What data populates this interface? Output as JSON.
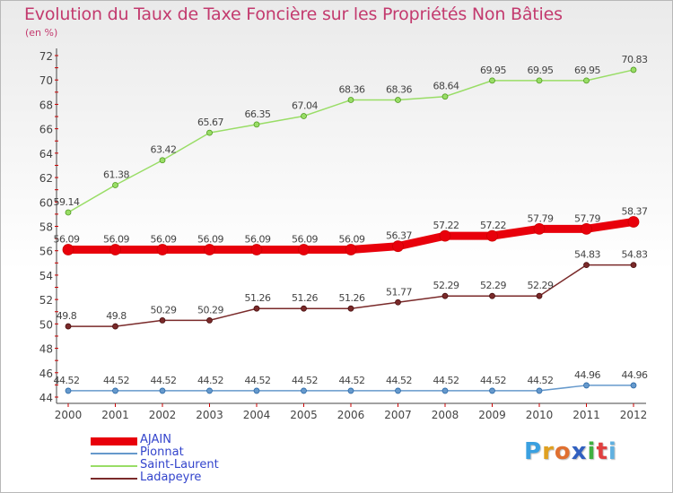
{
  "header": {
    "title": "Evolution du Taux de Taxe Foncière sur les Propriétés Non Bâties",
    "unit_note": "(en %)"
  },
  "chart_data": {
    "type": "line",
    "title": "Evolution du Taux de Taxe Foncière sur les Propriétés Non Bâties",
    "ylabel": "(en %)",
    "xlabel": "",
    "x": [
      "2000",
      "2001",
      "2002",
      "2003",
      "2004",
      "2005",
      "2006",
      "2007",
      "2008",
      "2009",
      "2010",
      "2011",
      "2012"
    ],
    "ylim": [
      44,
      72
    ],
    "yticks": [
      44,
      46,
      48,
      50,
      52,
      54,
      56,
      58,
      60,
      62,
      64,
      66,
      68,
      70,
      72
    ],
    "grid": false,
    "legend_position": "bottom-left",
    "series": [
      {
        "name": "AJAIN",
        "color": "#e8000b",
        "values": [
          56.09,
          56.09,
          56.09,
          56.09,
          56.09,
          56.09,
          56.09,
          56.37,
          57.22,
          57.22,
          57.79,
          57.79,
          58.37
        ]
      },
      {
        "name": "Pionnat",
        "color": "#6699cc",
        "values": [
          44.52,
          44.52,
          44.52,
          44.52,
          44.52,
          44.52,
          44.52,
          44.52,
          44.52,
          44.52,
          44.52,
          44.96,
          44.96
        ]
      },
      {
        "name": "Saint-Laurent",
        "color": "#99dd66",
        "values": [
          59.14,
          61.38,
          63.42,
          65.67,
          66.35,
          67.04,
          68.36,
          68.36,
          68.64,
          69.95,
          69.95,
          69.95,
          70.83
        ]
      },
      {
        "name": "Ladapeyre",
        "color": "#7a2a2a",
        "values": [
          49.8,
          49.8,
          50.29,
          50.29,
          51.26,
          51.26,
          51.26,
          51.77,
          52.29,
          52.29,
          52.29,
          54.83,
          54.83
        ]
      }
    ]
  },
  "logo": {
    "letters": [
      "P",
      "r",
      "o",
      "x",
      "i",
      "t",
      "i"
    ],
    "colors": [
      "#3aa0e0",
      "#e0a020",
      "#e07030",
      "#3060c0",
      "#40b040",
      "#e04040",
      "#60b0e0"
    ]
  }
}
